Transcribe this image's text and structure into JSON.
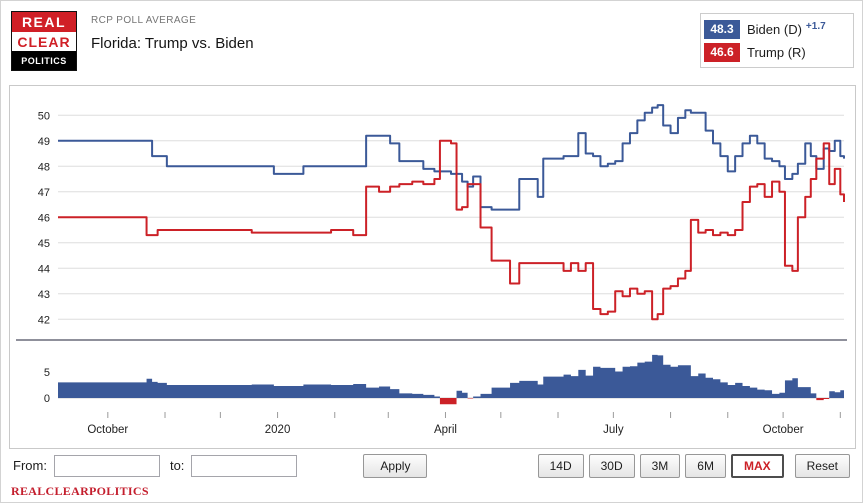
{
  "header": {
    "logo": {
      "line1": "REAL",
      "line2": "CLEAR",
      "line3": "POLITICS"
    },
    "kicker": "RCP POLL AVERAGE",
    "title": "Florida: Trump vs. Biden",
    "legend": [
      {
        "value": "48.3",
        "label": "Biden (D)",
        "delta": "+1.7",
        "color": "#3b5998"
      },
      {
        "value": "46.6",
        "label": "Trump (R)",
        "delta": "",
        "color": "#cc2127"
      }
    ]
  },
  "controls": {
    "from_label": "From:",
    "from_value": "",
    "to_label": "to:",
    "to_value": "",
    "apply_label": "Apply",
    "range_buttons": [
      {
        "label": "14D",
        "active": false
      },
      {
        "label": "30D",
        "active": false
      },
      {
        "label": "3M",
        "active": false
      },
      {
        "label": "6M",
        "active": false
      },
      {
        "label": "MAX",
        "active": true
      },
      {
        "label": "Reset",
        "active": false
      }
    ]
  },
  "footer": {
    "brand": "REALCLEARPOLITICS"
  },
  "chart_data": {
    "type": "line",
    "title": "Florida: Trump vs. Biden",
    "subtitle": "RCP Poll Average",
    "x_range": [
      "2019-09-04",
      "2020-11-03"
    ],
    "x_tick_dates": [
      "2019-10-01",
      "2020-01-01",
      "2020-04-01",
      "2020-07-01",
      "2020-10-01"
    ],
    "x_tick_labels": [
      "October",
      "2020",
      "April",
      "July",
      "October"
    ],
    "ylim": [
      41.5,
      50.6
    ],
    "yticks": [
      50,
      49,
      48,
      47,
      46,
      45,
      44,
      43,
      42
    ],
    "grid": "horizontal",
    "legend_position": "top-right",
    "spread": {
      "yticks": [
        5,
        0
      ],
      "note": "bottom panel is Biden minus Trump spread, blue positive, red negative"
    },
    "x": [
      "2019-09-04",
      "2019-09-18",
      "2019-10-02",
      "2019-10-16",
      "2019-10-22",
      "2019-10-25",
      "2019-10-28",
      "2019-11-02",
      "2019-11-18",
      "2019-12-04",
      "2019-12-18",
      "2019-12-30",
      "2020-01-15",
      "2020-01-30",
      "2020-02-11",
      "2020-02-18",
      "2020-02-25",
      "2020-03-02",
      "2020-03-07",
      "2020-03-14",
      "2020-03-20",
      "2020-03-26",
      "2020-03-29",
      "2020-04-04",
      "2020-04-07",
      "2020-04-10",
      "2020-04-13",
      "2020-04-16",
      "2020-04-20",
      "2020-04-26",
      "2020-05-02",
      "2020-05-06",
      "2020-05-11",
      "2020-05-17",
      "2020-05-21",
      "2020-05-24",
      "2020-05-30",
      "2020-06-04",
      "2020-06-08",
      "2020-06-12",
      "2020-06-16",
      "2020-06-20",
      "2020-06-24",
      "2020-06-28",
      "2020-07-02",
      "2020-07-06",
      "2020-07-10",
      "2020-07-14",
      "2020-07-18",
      "2020-07-22",
      "2020-07-25",
      "2020-07-28",
      "2020-08-01",
      "2020-08-05",
      "2020-08-09",
      "2020-08-12",
      "2020-08-16",
      "2020-08-20",
      "2020-08-24",
      "2020-08-28",
      "2020-09-01",
      "2020-09-05",
      "2020-09-09",
      "2020-09-13",
      "2020-09-17",
      "2020-09-21",
      "2020-09-25",
      "2020-09-29",
      "2020-10-02",
      "2020-10-06",
      "2020-10-09",
      "2020-10-13",
      "2020-10-16",
      "2020-10-19",
      "2020-10-23",
      "2020-10-26",
      "2020-10-29",
      "2020-11-01",
      "2020-11-03"
    ],
    "series": [
      {
        "name": "Biden (D)",
        "color": "#3b5998",
        "final": 48.3,
        "values": [
          49.0,
          49.0,
          49.0,
          49.0,
          49.0,
          48.4,
          48.4,
          48.0,
          48.0,
          48.0,
          48.0,
          47.7,
          48.0,
          48.0,
          48.0,
          49.2,
          49.2,
          48.9,
          48.2,
          48.2,
          47.9,
          47.8,
          47.8,
          47.7,
          47.7,
          47.4,
          47.2,
          47.6,
          46.4,
          46.3,
          46.3,
          46.3,
          47.5,
          47.5,
          46.8,
          48.3,
          48.3,
          48.4,
          48.4,
          49.3,
          48.5,
          48.4,
          48.0,
          48.1,
          48.2,
          48.9,
          49.3,
          49.8,
          50.1,
          50.3,
          50.4,
          49.6,
          49.3,
          49.9,
          50.2,
          50.1,
          50.1,
          49.4,
          48.9,
          48.4,
          47.8,
          48.4,
          48.9,
          49.2,
          48.9,
          48.3,
          48.2,
          48.0,
          47.5,
          47.7,
          48.1,
          48.9,
          48.4,
          47.9,
          48.7,
          48.6,
          49.0,
          48.4,
          48.3
        ]
      },
      {
        "name": "Trump (R)",
        "color": "#cc2127",
        "final": 46.6,
        "values": [
          46.0,
          46.0,
          46.0,
          46.0,
          45.3,
          45.3,
          45.5,
          45.5,
          45.5,
          45.5,
          45.4,
          45.4,
          45.4,
          45.5,
          45.3,
          47.2,
          47.0,
          47.2,
          47.3,
          47.4,
          47.3,
          47.5,
          49.0,
          48.9,
          46.3,
          46.4,
          47.3,
          47.3,
          45.6,
          44.3,
          44.3,
          43.4,
          44.2,
          44.2,
          44.2,
          44.2,
          44.2,
          43.9,
          44.2,
          43.9,
          44.2,
          42.4,
          42.2,
          42.3,
          43.1,
          42.9,
          43.2,
          43.0,
          43.1,
          42.0,
          42.2,
          43.2,
          43.3,
          43.6,
          43.9,
          45.9,
          45.4,
          45.5,
          45.3,
          45.4,
          45.3,
          45.5,
          46.6,
          47.2,
          47.3,
          46.8,
          47.4,
          47.0,
          44.1,
          43.9,
          46.0,
          46.8,
          47.5,
          48.3,
          48.9,
          47.3,
          47.9,
          46.9,
          46.6
        ]
      }
    ]
  }
}
